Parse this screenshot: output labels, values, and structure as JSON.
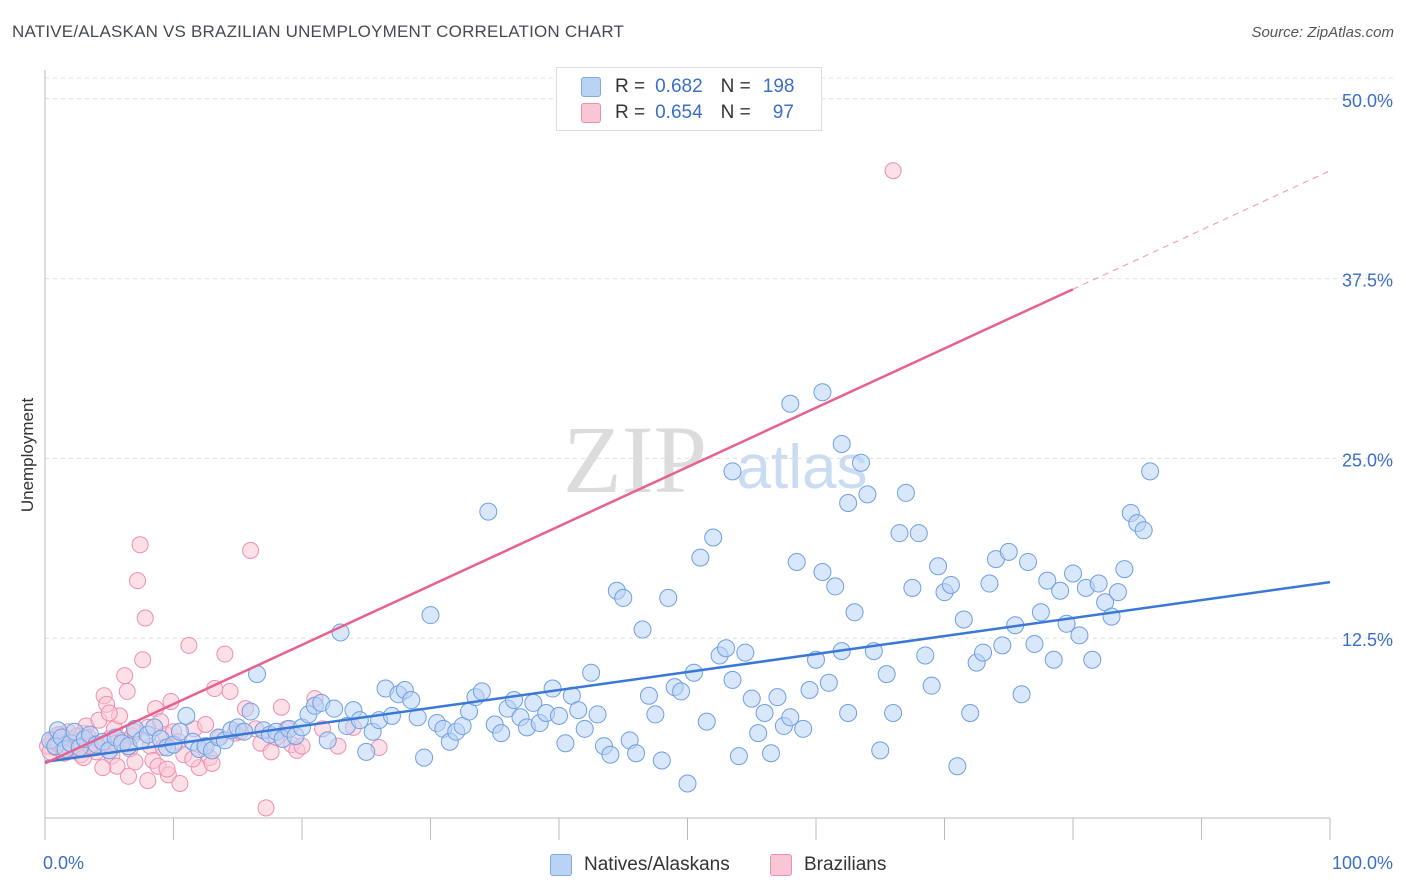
{
  "title": "NATIVE/ALASKAN VS BRAZILIAN UNEMPLOYMENT CORRELATION CHART",
  "source": "Source: ZipAtlas.com",
  "watermark": {
    "zip": "ZIP",
    "atlas": "atlas"
  },
  "colors": {
    "blue": "#3a78d6",
    "blue_fill": "#b9d3f5",
    "pink": "#e8608f",
    "pink_fill": "#f9c6d5",
    "tick_text": "#3a6fc4"
  },
  "legend_top": {
    "rows": [
      {
        "r_label": "R =",
        "r_value": "0.682",
        "n_label": "N =",
        "n_value": "198"
      },
      {
        "r_label": "R =",
        "r_value": "0.654",
        "n_label": "N =",
        "n_value": "97"
      }
    ]
  },
  "legend_bottom": {
    "blue": "Natives/Alaskans",
    "pink": "Brazilians"
  },
  "chart_data": {
    "type": "scatter",
    "xlabel": "",
    "ylabel": "Unemployment",
    "xlim": [
      0,
      100
    ],
    "ylim": [
      0,
      52
    ],
    "x_tick_labels": [
      "0.0%",
      "100.0%"
    ],
    "y_ticks": [
      12.5,
      25.0,
      37.5,
      50.0
    ],
    "y_tick_labels": [
      "12.5%",
      "25.0%",
      "37.5%",
      "50.0%"
    ],
    "grid": "horizontal dashed",
    "legend": "top-center",
    "series": [
      {
        "name": "Natives/Alaskans",
        "color": "#3a78d6",
        "trend": {
          "x": [
            0,
            100
          ],
          "y": [
            3.9,
            16.4
          ]
        },
        "points": [
          [
            0.4,
            5.4
          ],
          [
            0.8,
            5.0
          ],
          [
            1.0,
            6.1
          ],
          [
            1.3,
            5.6
          ],
          [
            1.6,
            4.8
          ],
          [
            2.0,
            5.2
          ],
          [
            2.3,
            6.0
          ],
          [
            2.7,
            4.9
          ],
          [
            3.1,
            5.5
          ],
          [
            3.5,
            5.8
          ],
          [
            4.0,
            5.1
          ],
          [
            4.5,
            5.3
          ],
          [
            5.0,
            4.7
          ],
          [
            5.5,
            5.6
          ],
          [
            6.0,
            5.2
          ],
          [
            6.5,
            5.0
          ],
          [
            7.0,
            6.2
          ],
          [
            7.5,
            5.4
          ],
          [
            8.0,
            5.8
          ],
          [
            8.5,
            6.3
          ],
          [
            9.0,
            5.5
          ],
          [
            9.5,
            4.9
          ],
          [
            10.0,
            5.1
          ],
          [
            10.5,
            6.0
          ],
          [
            11.0,
            7.1
          ],
          [
            11.5,
            5.3
          ],
          [
            12.0,
            4.8
          ],
          [
            12.5,
            5.0
          ],
          [
            13.0,
            4.7
          ],
          [
            13.5,
            5.6
          ],
          [
            14.0,
            5.4
          ],
          [
            14.5,
            6.1
          ],
          [
            15.0,
            6.3
          ],
          [
            15.5,
            6.0
          ],
          [
            16.0,
            7.4
          ],
          [
            16.5,
            10.0
          ],
          [
            17.0,
            6.1
          ],
          [
            17.5,
            5.8
          ],
          [
            18.0,
            6.0
          ],
          [
            18.5,
            5.5
          ],
          [
            19.0,
            6.2
          ],
          [
            19.5,
            5.7
          ],
          [
            20.0,
            6.3
          ],
          [
            20.5,
            7.2
          ],
          [
            21.0,
            7.8
          ],
          [
            21.5,
            8.0
          ],
          [
            22.0,
            5.4
          ],
          [
            22.5,
            7.6
          ],
          [
            23.0,
            12.9
          ],
          [
            23.5,
            6.4
          ],
          [
            24.0,
            7.5
          ],
          [
            24.5,
            6.8
          ],
          [
            25.0,
            4.6
          ],
          [
            25.5,
            6.0
          ],
          [
            26.0,
            6.8
          ],
          [
            26.5,
            9.0
          ],
          [
            27.0,
            7.1
          ],
          [
            27.5,
            8.6
          ],
          [
            28.0,
            8.9
          ],
          [
            28.5,
            8.2
          ],
          [
            29.0,
            7.0
          ],
          [
            29.5,
            4.2
          ],
          [
            30.0,
            14.1
          ],
          [
            30.5,
            6.6
          ],
          [
            31.0,
            6.2
          ],
          [
            31.5,
            5.3
          ],
          [
            32.0,
            6.0
          ],
          [
            32.5,
            6.4
          ],
          [
            33.0,
            7.4
          ],
          [
            33.5,
            8.4
          ],
          [
            34.0,
            8.8
          ],
          [
            34.5,
            21.3
          ],
          [
            35.0,
            6.5
          ],
          [
            35.5,
            5.9
          ],
          [
            36.0,
            7.6
          ],
          [
            36.5,
            8.2
          ],
          [
            37.0,
            7.0
          ],
          [
            37.5,
            6.3
          ],
          [
            38.0,
            8.0
          ],
          [
            38.5,
            6.6
          ],
          [
            39.0,
            7.3
          ],
          [
            39.5,
            9.0
          ],
          [
            40.0,
            7.1
          ],
          [
            40.5,
            5.2
          ],
          [
            41.0,
            8.5
          ],
          [
            41.5,
            7.5
          ],
          [
            42.0,
            6.2
          ],
          [
            42.5,
            10.1
          ],
          [
            43.0,
            7.2
          ],
          [
            43.5,
            5.0
          ],
          [
            44.0,
            4.4
          ],
          [
            44.5,
            15.8
          ],
          [
            45.0,
            15.3
          ],
          [
            45.5,
            5.4
          ],
          [
            46.0,
            4.5
          ],
          [
            46.5,
            13.1
          ],
          [
            47.0,
            8.5
          ],
          [
            47.5,
            7.2
          ],
          [
            48.0,
            4.0
          ],
          [
            48.5,
            15.3
          ],
          [
            49.0,
            9.1
          ],
          [
            49.5,
            8.8
          ],
          [
            50.0,
            2.4
          ],
          [
            50.5,
            10.1
          ],
          [
            51.0,
            18.1
          ],
          [
            51.5,
            6.7
          ],
          [
            52.0,
            19.5
          ],
          [
            52.5,
            11.3
          ],
          [
            53.0,
            11.8
          ],
          [
            53.5,
            9.6
          ],
          [
            54.0,
            4.3
          ],
          [
            54.5,
            11.5
          ],
          [
            55.0,
            8.3
          ],
          [
            55.5,
            5.9
          ],
          [
            56.0,
            7.3
          ],
          [
            56.5,
            4.5
          ],
          [
            57.0,
            8.4
          ],
          [
            57.5,
            6.4
          ],
          [
            58.0,
            7.0
          ],
          [
            58.5,
            17.8
          ],
          [
            59.0,
            6.2
          ],
          [
            59.5,
            8.9
          ],
          [
            60.0,
            11.0
          ],
          [
            60.5,
            17.1
          ],
          [
            61.0,
            9.4
          ],
          [
            61.5,
            16.1
          ],
          [
            62.0,
            11.6
          ],
          [
            62.5,
            7.3
          ],
          [
            63.0,
            14.3
          ],
          [
            63.5,
            24.7
          ],
          [
            64.0,
            22.5
          ],
          [
            64.5,
            11.6
          ],
          [
            65.0,
            4.7
          ],
          [
            65.5,
            10.0
          ],
          [
            66.0,
            7.3
          ],
          [
            66.5,
            19.8
          ],
          [
            67.0,
            22.6
          ],
          [
            67.5,
            16.0
          ],
          [
            68.0,
            19.8
          ],
          [
            68.5,
            11.3
          ],
          [
            69.0,
            9.2
          ],
          [
            69.5,
            17.5
          ],
          [
            70.0,
            15.7
          ],
          [
            70.5,
            16.2
          ],
          [
            71.0,
            3.6
          ],
          [
            71.5,
            13.8
          ],
          [
            72.0,
            7.3
          ],
          [
            72.5,
            10.8
          ],
          [
            73.0,
            11.5
          ],
          [
            73.5,
            16.3
          ],
          [
            74.0,
            18.0
          ],
          [
            74.5,
            12.0
          ],
          [
            75.0,
            18.5
          ],
          [
            75.5,
            13.4
          ],
          [
            76.0,
            8.6
          ],
          [
            76.5,
            17.8
          ],
          [
            77.0,
            12.1
          ],
          [
            77.5,
            14.3
          ],
          [
            78.0,
            16.5
          ],
          [
            78.5,
            11.0
          ],
          [
            79.0,
            15.8
          ],
          [
            79.5,
            13.5
          ],
          [
            80.0,
            17.0
          ],
          [
            80.5,
            12.7
          ],
          [
            81.0,
            16.0
          ],
          [
            81.5,
            11.0
          ],
          [
            82.0,
            16.3
          ],
          [
            82.5,
            15.0
          ],
          [
            83.0,
            14.0
          ],
          [
            83.5,
            15.7
          ],
          [
            84.0,
            17.3
          ],
          [
            84.5,
            21.2
          ],
          [
            85.0,
            20.5
          ],
          [
            85.5,
            20.0
          ],
          [
            86.0,
            24.1
          ],
          [
            58.0,
            28.8
          ],
          [
            60.5,
            29.6
          ],
          [
            62.0,
            26.0
          ],
          [
            62.5,
            21.9
          ],
          [
            53.5,
            24.1
          ]
        ]
      },
      {
        "name": "Brazilians",
        "color": "#e8608f",
        "trend": {
          "x": [
            0,
            100
          ],
          "y": [
            3.8,
            45.0
          ]
        },
        "trend_solid_until_x": 80,
        "points": [
          [
            0.2,
            5.0
          ],
          [
            0.4,
            4.6
          ],
          [
            0.6,
            5.4
          ],
          [
            0.8,
            4.9
          ],
          [
            1.0,
            5.2
          ],
          [
            1.2,
            5.8
          ],
          [
            1.4,
            4.7
          ],
          [
            1.6,
            5.1
          ],
          [
            1.8,
            6.0
          ],
          [
            2.0,
            5.5
          ],
          [
            2.2,
            4.8
          ],
          [
            2.4,
            5.3
          ],
          [
            2.6,
            5.0
          ],
          [
            2.8,
            4.4
          ],
          [
            3.0,
            5.9
          ],
          [
            3.2,
            6.4
          ],
          [
            3.4,
            5.6
          ],
          [
            3.6,
            4.9
          ],
          [
            3.8,
            5.2
          ],
          [
            4.0,
            4.6
          ],
          [
            4.2,
            6.8
          ],
          [
            4.4,
            5.0
          ],
          [
            4.6,
            8.5
          ],
          [
            4.8,
            7.9
          ],
          [
            5.0,
            5.5
          ],
          [
            5.2,
            4.3
          ],
          [
            5.4,
            6.2
          ],
          [
            5.6,
            3.6
          ],
          [
            5.8,
            7.1
          ],
          [
            6.0,
            5.4
          ],
          [
            6.2,
            9.9
          ],
          [
            6.4,
            8.8
          ],
          [
            6.6,
            4.8
          ],
          [
            6.8,
            5.7
          ],
          [
            7.0,
            6.0
          ],
          [
            7.2,
            16.5
          ],
          [
            7.4,
            19.0
          ],
          [
            7.6,
            11.0
          ],
          [
            7.8,
            13.9
          ],
          [
            8.0,
            6.3
          ],
          [
            8.2,
            5.0
          ],
          [
            8.4,
            4.0
          ],
          [
            8.6,
            7.6
          ],
          [
            8.8,
            3.6
          ],
          [
            9.0,
            6.7
          ],
          [
            9.2,
            4.9
          ],
          [
            9.4,
            5.8
          ],
          [
            9.6,
            3.0
          ],
          [
            9.8,
            8.1
          ],
          [
            10.0,
            6.0
          ],
          [
            10.4,
            5.3
          ],
          [
            10.8,
            4.4
          ],
          [
            11.2,
            12.0
          ],
          [
            11.6,
            6.2
          ],
          [
            12.0,
            3.5
          ],
          [
            12.4,
            5.0
          ],
          [
            12.8,
            4.2
          ],
          [
            13.2,
            9.0
          ],
          [
            13.6,
            5.6
          ],
          [
            14.0,
            11.4
          ],
          [
            14.4,
            8.8
          ],
          [
            14.8,
            5.9
          ],
          [
            15.2,
            6.0
          ],
          [
            15.6,
            7.6
          ],
          [
            16.0,
            18.6
          ],
          [
            16.4,
            6.2
          ],
          [
            16.8,
            5.2
          ],
          [
            17.2,
            0.7
          ],
          [
            17.6,
            4.6
          ],
          [
            18.0,
            5.6
          ],
          [
            18.4,
            7.7
          ],
          [
            18.8,
            6.2
          ],
          [
            19.2,
            5.1
          ],
          [
            19.6,
            4.7
          ],
          [
            20.0,
            5.0
          ],
          [
            21.0,
            8.3
          ],
          [
            21.6,
            6.2
          ],
          [
            22.8,
            5.0
          ],
          [
            24.0,
            6.3
          ],
          [
            26.0,
            4.9
          ],
          [
            66.0,
            45.0
          ],
          [
            1.0,
            5.8
          ],
          [
            1.5,
            4.5
          ],
          [
            2.5,
            5.7
          ],
          [
            3.0,
            4.2
          ],
          [
            3.5,
            5.0
          ],
          [
            4.5,
            3.5
          ],
          [
            5.0,
            7.3
          ],
          [
            5.5,
            5.2
          ],
          [
            6.5,
            2.9
          ],
          [
            7.0,
            3.9
          ],
          [
            8.0,
            2.6
          ],
          [
            9.5,
            3.4
          ],
          [
            10.5,
            2.4
          ],
          [
            11.5,
            4.1
          ],
          [
            12.5,
            6.5
          ],
          [
            13.0,
            3.8
          ]
        ]
      }
    ]
  }
}
